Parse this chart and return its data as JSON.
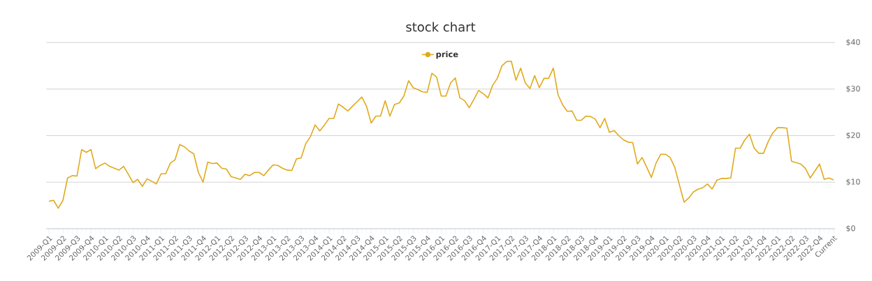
{
  "chart_data": {
    "type": "line",
    "title": "stock chart",
    "categories": [
      "2009-Q1",
      null,
      null,
      "2009-Q2",
      null,
      null,
      "2009-Q3",
      null,
      null,
      "2009-Q4",
      null,
      null,
      "2010-Q1",
      null,
      null,
      "2010-Q2",
      null,
      null,
      "2010-Q3",
      null,
      null,
      "2010-Q4",
      null,
      null,
      "2011-Q1",
      null,
      null,
      "2011-Q2",
      null,
      null,
      "2011-Q3",
      null,
      null,
      "2011-Q4",
      null,
      null,
      "2012-Q1",
      null,
      null,
      "2012-Q2",
      null,
      null,
      "2012-Q3",
      null,
      null,
      "2012-Q4",
      null,
      null,
      "2013-Q1",
      null,
      null,
      "2013-Q2",
      null,
      null,
      "2013-Q3",
      null,
      null,
      "2013-Q4",
      null,
      null,
      "2014-Q1",
      null,
      null,
      "2014-Q2",
      null,
      null,
      "2014-Q3",
      null,
      null,
      "2014-Q4",
      null,
      null,
      "2015-Q1",
      null,
      null,
      "2015-Q2",
      null,
      null,
      "2015-Q3",
      null,
      null,
      "2015-Q4",
      null,
      null,
      "2016-Q1",
      null,
      null,
      "2016-Q2",
      null,
      null,
      "2016-Q3",
      null,
      null,
      "2016-Q4",
      null,
      null,
      "2017-Q1",
      null,
      null,
      "2017-Q2",
      null,
      null,
      "2017-Q3",
      null,
      null,
      "2017-Q4",
      null,
      null,
      "2018-Q1",
      null,
      null,
      "2018-Q2",
      null,
      null,
      "2018-Q3",
      null,
      null,
      "2018-Q4",
      null,
      null,
      "2019-Q1",
      null,
      null,
      "2019-Q2",
      null,
      null,
      "2019-Q3",
      null,
      null,
      "2019-Q4",
      null,
      null,
      "2020-Q1",
      null,
      null,
      "2020-Q2",
      null,
      null,
      "2020-Q3",
      null,
      null,
      "2020-Q4",
      null,
      null,
      "2021-Q1",
      null,
      null,
      "2021-Q2",
      null,
      null,
      "2021-Q3",
      null,
      null,
      "2021-Q4",
      null,
      null,
      "2022-Q1",
      null,
      null,
      "2022-Q2",
      null,
      null,
      "2022-Q3",
      null,
      null,
      "2022-Q4",
      null,
      null,
      "Current"
    ],
    "series": [
      {
        "name": "price",
        "color": "#e0aa1e",
        "values": [
          5.9,
          6.1,
          4.4,
          6.1,
          10.9,
          11.4,
          11.3,
          17.0,
          16.4,
          17.0,
          12.9,
          13.6,
          14.1,
          13.4,
          13.0,
          12.6,
          13.4,
          11.7,
          9.9,
          10.6,
          9.1,
          10.7,
          10.2,
          9.6,
          11.8,
          11.8,
          14.1,
          14.8,
          18.1,
          17.6,
          16.7,
          16.1,
          12.1,
          10.0,
          14.3,
          14.0,
          14.1,
          13.0,
          12.8,
          11.2,
          10.9,
          10.6,
          11.7,
          11.4,
          12.1,
          12.1,
          11.4,
          12.6,
          13.7,
          13.6,
          13.0,
          12.6,
          12.5,
          15.0,
          15.2,
          18.3,
          19.8,
          22.3,
          21.0,
          22.3,
          23.7,
          23.7,
          26.8,
          26.1,
          25.3,
          26.3,
          27.3,
          28.3,
          26.3,
          22.7,
          24.2,
          24.2,
          27.5,
          24.2,
          26.7,
          27.0,
          28.5,
          31.8,
          30.3,
          29.9,
          29.4,
          29.3,
          33.4,
          32.6,
          28.5,
          28.5,
          31.3,
          32.4,
          28.1,
          27.5,
          26.0,
          27.8,
          29.7,
          29.0,
          28.1,
          30.8,
          32.3,
          35.0,
          35.9,
          36.0,
          31.9,
          34.5,
          31.3,
          30.1,
          32.9,
          30.3,
          32.3,
          32.3,
          34.5,
          28.8,
          26.6,
          25.2,
          25.3,
          23.3,
          23.3,
          24.2,
          24.1,
          23.5,
          21.7,
          23.7,
          20.7,
          21.1,
          20.0,
          19.1,
          18.6,
          18.5,
          13.9,
          15.3,
          13.2,
          11.0,
          14.1,
          16.0,
          16.0,
          15.3,
          13.2,
          9.4,
          5.7,
          6.6,
          7.9,
          8.5,
          8.8,
          9.6,
          8.5,
          10.4,
          10.8,
          10.8,
          10.9,
          17.3,
          17.3,
          19.1,
          20.3,
          17.3,
          16.2,
          16.2,
          18.7,
          20.6,
          21.7,
          21.7,
          21.6,
          14.5,
          14.2,
          13.9,
          12.9,
          10.9,
          12.4,
          13.9,
          10.6,
          10.9,
          10.5
        ]
      }
    ],
    "ylim": [
      0,
      40
    ],
    "yticks": [
      {
        "value": 0,
        "label": "$0"
      },
      {
        "value": 10,
        "label": "$10"
      },
      {
        "value": 20,
        "label": "$20"
      },
      {
        "value": 30,
        "label": "$30"
      },
      {
        "value": 40,
        "label": "$40"
      }
    ],
    "grid": "y",
    "legend": "top"
  }
}
